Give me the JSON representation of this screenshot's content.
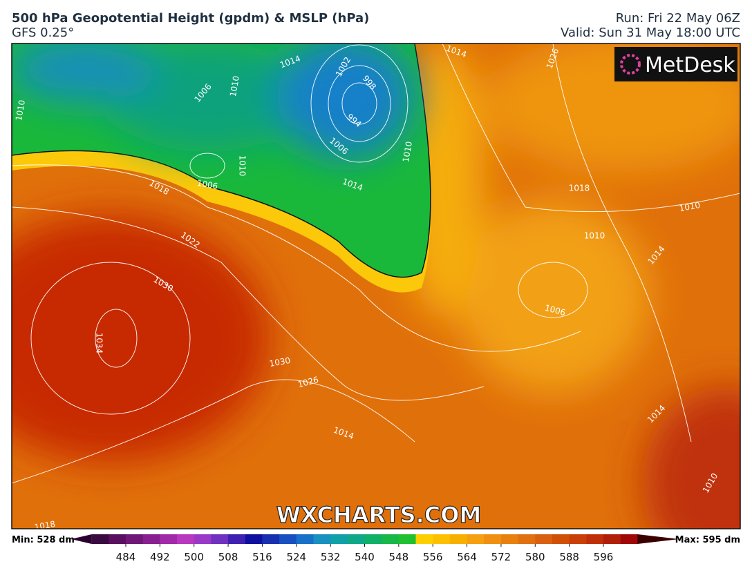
{
  "header": {
    "title": "500 hPa Geopotential Height (gpdm) & MSLP (hPa)",
    "model": "GFS 0.25°",
    "run": "Run: Fri 22 May 06Z",
    "valid": "Valid: Sun 31 May 18:00 UTC"
  },
  "logo": "MetDesk",
  "watermark": "WXCHARTS.COM",
  "colorbar": {
    "min_label": "Min: 528 dm",
    "max_label": "Max: 595 dm",
    "ticks": [
      484,
      492,
      500,
      508,
      516,
      524,
      532,
      540,
      548,
      556,
      564,
      572,
      580,
      588,
      596
    ]
  },
  "isobar_labels": [
    "1014",
    "1002",
    "998",
    "994",
    "1006",
    "1010",
    "1006",
    "1010",
    "1006",
    "1014",
    "1010",
    "1018",
    "1022",
    "1030",
    "1034",
    "1030",
    "1026",
    "1014",
    "1014",
    "1026",
    "1018",
    "1010",
    "1010",
    "1014",
    "1006",
    "1014",
    "1010",
    "1018",
    "1010"
  ]
}
